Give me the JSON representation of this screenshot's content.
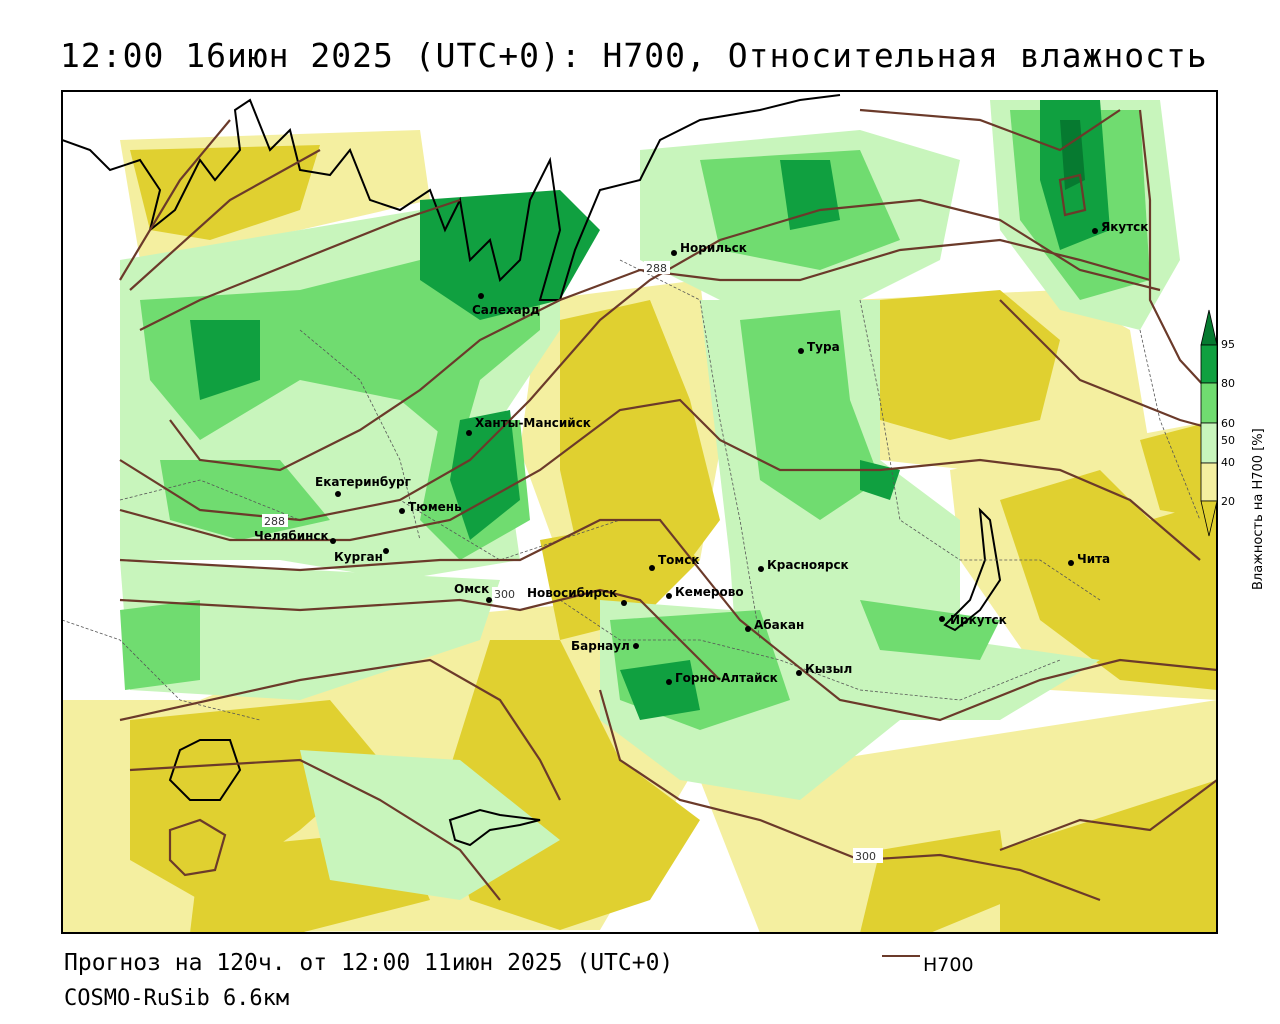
{
  "header": {
    "title": "12:00 16июн 2025 (UTC+0): H700, Относительная влажность"
  },
  "footer": {
    "forecast": "Прогноз на 120ч. от 12:00 11июн 2025 (UTC+0)",
    "model": "COSMO-RuSib 6.6км"
  },
  "legend": {
    "line_label": "H700",
    "line_color": "#6b3a2a"
  },
  "colorbar": {
    "title": "Влажность на H700 [%]",
    "ticks": [
      "95",
      "80",
      "60",
      "50",
      "40",
      "20"
    ],
    "colors": {
      "very_dry": "#e0d030",
      "dry": "#f4efa0",
      "mid": "#ffffff",
      "moist": "#c8f5bc",
      "wet": "#70dc70",
      "very_wet": "#10a040",
      "saturated": "#067a30"
    }
  },
  "isolines": {
    "labels": [
      "288",
      "288",
      "300",
      "300"
    ]
  },
  "cities": [
    {
      "name": "Норильск"
    },
    {
      "name": "Якутск"
    },
    {
      "name": "Салехард"
    },
    {
      "name": "Тура"
    },
    {
      "name": "Ханты-Мансийск"
    },
    {
      "name": "Екатеринбург"
    },
    {
      "name": "Тюмень"
    },
    {
      "name": "Челябинск"
    },
    {
      "name": "Курган"
    },
    {
      "name": "Омск"
    },
    {
      "name": "Новосибирск"
    },
    {
      "name": "Томск"
    },
    {
      "name": "Кемерово"
    },
    {
      "name": "Красноярск"
    },
    {
      "name": "Барнаул"
    },
    {
      "name": "Абакан"
    },
    {
      "name": "Горно-Алтайск"
    },
    {
      "name": "Кызыл"
    },
    {
      "name": "Иркутск"
    },
    {
      "name": "Чита"
    }
  ]
}
